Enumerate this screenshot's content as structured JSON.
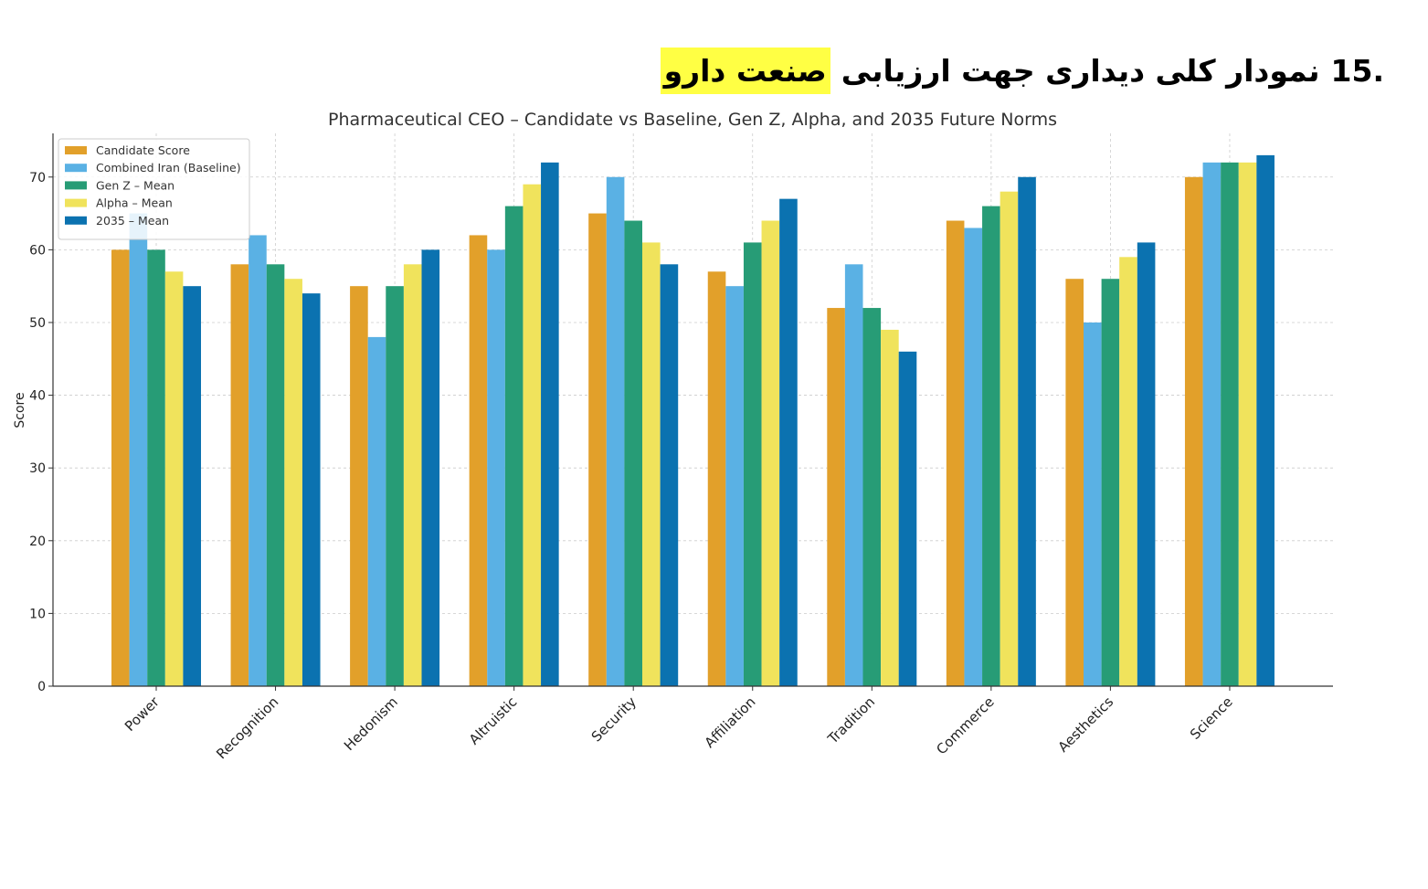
{
  "heading": {
    "number": "15.",
    "text": "نمودار کلی دیداری جهت ارزیابی",
    "highlight": "صنعت دارو",
    "highlight_color": "#ffff44"
  },
  "chart_data": {
    "type": "bar",
    "title": "Pharmaceutical CEO – Candidate vs Baseline, Gen Z, Alpha, and 2035 Future Norms",
    "xlabel": "",
    "ylabel": "Score",
    "ylim": [
      0,
      76
    ],
    "yticks": [
      0,
      10,
      20,
      30,
      40,
      50,
      60,
      70
    ],
    "grid": true,
    "legend_position": "top-left",
    "categories": [
      "Power",
      "Recognition",
      "Hedonism",
      "Altruistic",
      "Security",
      "Affiliation",
      "Tradition",
      "Commerce",
      "Aesthetics",
      "Science"
    ],
    "series": [
      {
        "name": "Candidate Score",
        "color": "#e2a02a",
        "values": [
          60,
          58,
          55,
          62,
          65,
          57,
          52,
          64,
          56,
          70
        ]
      },
      {
        "name": "Combined Iran (Baseline)",
        "color": "#5ab1e4",
        "values": [
          65,
          62,
          48,
          60,
          70,
          55,
          58,
          63,
          50,
          72
        ]
      },
      {
        "name": "Gen Z – Mean",
        "color": "#279c76",
        "values": [
          60,
          58,
          55,
          66,
          64,
          61,
          52,
          66,
          56,
          72
        ]
      },
      {
        "name": "Alpha – Mean",
        "color": "#f0e35c",
        "values": [
          57,
          56,
          58,
          69,
          61,
          64,
          49,
          68,
          59,
          72
        ]
      },
      {
        "name": "2035 – Mean",
        "color": "#0b72b0",
        "values": [
          55,
          54,
          60,
          72,
          58,
          67,
          46,
          70,
          61,
          73
        ]
      }
    ]
  }
}
